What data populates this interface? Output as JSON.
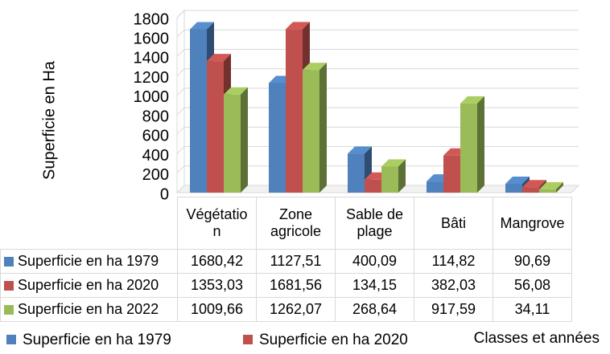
{
  "chart_data": {
    "type": "bar3d",
    "y_axis_label": "Superficie en Ha",
    "x_axis_label": "Classes et années",
    "categories": [
      "Végétation",
      "Zone agricole",
      "Sable de plage",
      "Bâti",
      "Mangrove"
    ],
    "series": [
      {
        "name": "Superficie en ha 1979",
        "color": "#4f81bd",
        "values": [
          1680.42,
          1127.51,
          400.09,
          114.82,
          90.69
        ],
        "value_labels": [
          "1680,42",
          "1127,51",
          "400,09",
          "114,82",
          "90,69"
        ]
      },
      {
        "name": "Superficie en ha 2020",
        "color": "#c0504d",
        "values": [
          1353.03,
          1681.56,
          134.15,
          382.03,
          56.08
        ],
        "value_labels": [
          "1353,03",
          "1681,56",
          "134,15",
          "382,03",
          "56,08"
        ]
      },
      {
        "name": "Superficie en ha 2022",
        "color": "#9bbb59",
        "values": [
          1009.66,
          1262.07,
          268.64,
          917.59,
          34.11
        ],
        "value_labels": [
          "1009,66",
          "1262,07",
          "268,64",
          "917,59",
          "34,11"
        ]
      }
    ],
    "legend_series": [
      0,
      1
    ],
    "ylim": [
      0,
      1800
    ],
    "yticks": [
      0,
      200,
      400,
      600,
      800,
      1000,
      1200,
      1400,
      1600,
      1800
    ],
    "grid": true
  }
}
